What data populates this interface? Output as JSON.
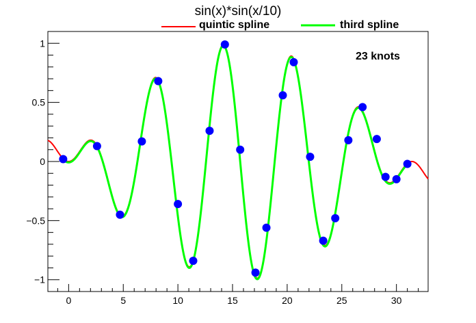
{
  "chart_data": {
    "type": "line",
    "title": "sin(x)*sin(x/10)",
    "xlabel": "",
    "ylabel": "",
    "xlim": [
      -1.9,
      32.9
    ],
    "ylim": [
      -1.1,
      1.1
    ],
    "x_ticks": [
      0,
      5,
      10,
      15,
      20,
      25,
      30
    ],
    "x_tick_labels": [
      "0",
      "5",
      "10",
      "15",
      "20",
      "25",
      "30"
    ],
    "y_ticks": [
      -1,
      -0.5,
      0,
      0.5,
      1
    ],
    "y_tick_labels": [
      "−1",
      "−0.5",
      "0",
      "0.5",
      "1"
    ],
    "function": "sin(x)*sin(x/10)",
    "series": [
      {
        "name": "quintic spline",
        "color": "#ff0000",
        "x_range": [
          -1.9,
          32.9
        ],
        "kind": "curve"
      },
      {
        "name": "third spline",
        "color": "#00ff00",
        "x_range": [
          -0.5,
          31.0
        ],
        "kind": "curve"
      },
      {
        "kind": "points",
        "color": "#0000ff",
        "x": [
          -0.5,
          2.6,
          4.7,
          6.7,
          8.2,
          10.0,
          11.4,
          12.9,
          14.3,
          15.7,
          17.1,
          18.1,
          19.6,
          20.6,
          22.1,
          23.3,
          24.4,
          25.6,
          26.9,
          28.2,
          29.0,
          30.0,
          31.0
        ],
        "y": [
          0.02,
          0.13,
          -0.45,
          0.17,
          0.68,
          -0.36,
          -0.84,
          0.26,
          0.99,
          0.1,
          -0.94,
          -0.56,
          0.56,
          0.84,
          0.04,
          -0.67,
          -0.48,
          0.18,
          0.46,
          0.19,
          -0.13,
          -0.15,
          -0.02
        ]
      }
    ],
    "annotation": "23 knots",
    "legend_position": "top-right",
    "grid": false
  }
}
